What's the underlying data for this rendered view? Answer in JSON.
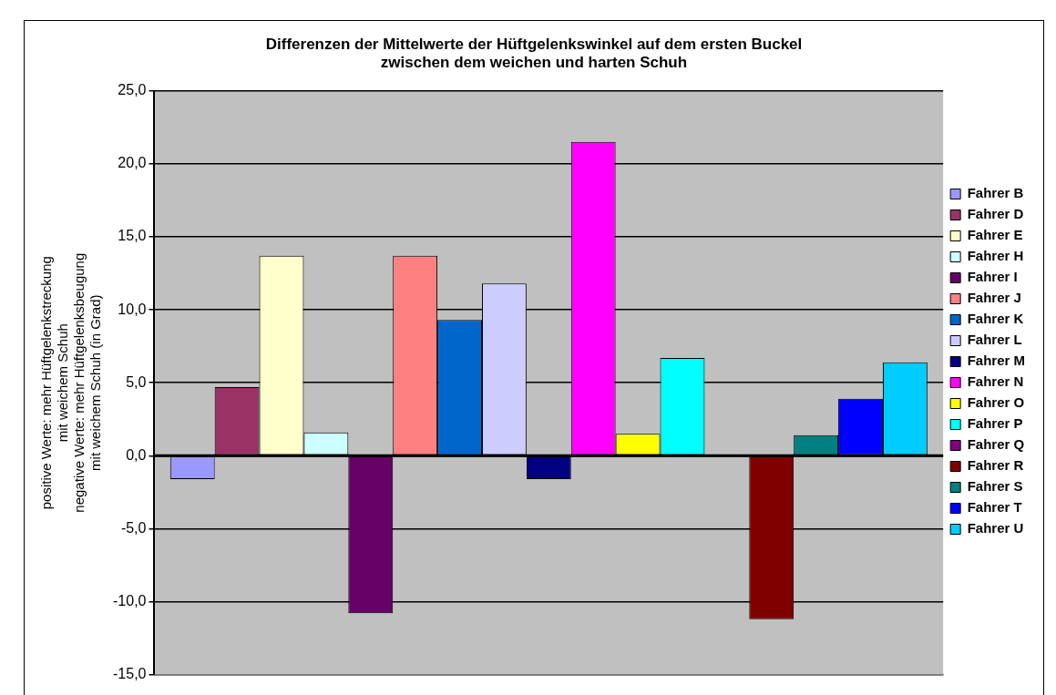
{
  "chart_data": {
    "type": "bar",
    "title": "Differenzen der Mittelwerte der Hüftgelenkswinkel auf dem ersten Buckel\nzwischen dem weichen und harten Schuh",
    "ylabel": "positive Werte: mehr Hüftgelenkstreckung\nmit weichem Schuh\nnegative Werte: mehr Hüftgelenksbeugung\nmit weichem Schuh (in Grad)",
    "categories": [
      null
    ],
    "series": [
      {
        "name": "Fahrer B",
        "color": "#9999ff",
        "values": [
          -1.6
        ]
      },
      {
        "name": "Fahrer D",
        "color": "#993366",
        "values": [
          4.7
        ]
      },
      {
        "name": "Fahrer E",
        "color": "#ffffcc",
        "values": [
          13.7
        ]
      },
      {
        "name": "Fahrer H",
        "color": "#ccffff",
        "values": [
          1.6
        ]
      },
      {
        "name": "Fahrer I",
        "color": "#660066",
        "values": [
          -10.8
        ]
      },
      {
        "name": "Fahrer J",
        "color": "#ff8080",
        "values": [
          13.7
        ]
      },
      {
        "name": "Fahrer K",
        "color": "#0066cc",
        "values": [
          9.3
        ]
      },
      {
        "name": "Fahrer L",
        "color": "#ccccff",
        "values": [
          11.8
        ]
      },
      {
        "name": "Fahrer M",
        "color": "#000080",
        "values": [
          -1.6
        ]
      },
      {
        "name": "Fahrer N",
        "color": "#ff00ff",
        "values": [
          21.5
        ]
      },
      {
        "name": "Fahrer O",
        "color": "#ffff00",
        "values": [
          1.5
        ]
      },
      {
        "name": "Fahrer P",
        "color": "#00ffff",
        "values": [
          6.7
        ]
      },
      {
        "name": "Fahrer Q",
        "color": "#800080",
        "values": [
          null
        ]
      },
      {
        "name": "Fahrer R",
        "color": "#800000",
        "values": [
          -11.2
        ]
      },
      {
        "name": "Fahrer S",
        "color": "#008080",
        "values": [
          1.4
        ]
      },
      {
        "name": "Fahrer T",
        "color": "#0000ff",
        "values": [
          3.9
        ]
      },
      {
        "name": "Fahrer U",
        "color": "#00ccff",
        "values": [
          6.4
        ]
      }
    ],
    "ylim": [
      -15,
      25
    ],
    "yticks": [
      {
        "value": -15,
        "label": "-15,0"
      },
      {
        "value": -10,
        "label": "-10,0"
      },
      {
        "value": -5,
        "label": "-5,0"
      },
      {
        "value": 0,
        "label": "0,0"
      },
      {
        "value": 5,
        "label": "5,0"
      },
      {
        "value": 10,
        "label": "10,0"
      },
      {
        "value": 15,
        "label": "15,0"
      },
      {
        "value": 20,
        "label": "20,0"
      },
      {
        "value": 25,
        "label": "25,0"
      }
    ],
    "grid": "y",
    "legend": "right"
  }
}
